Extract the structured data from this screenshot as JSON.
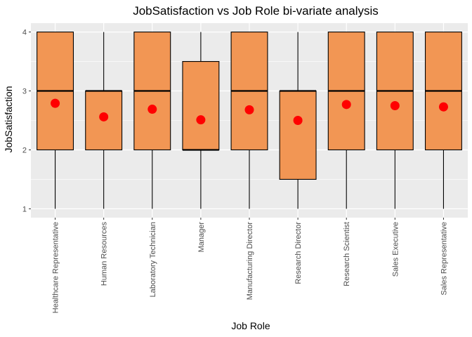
{
  "chart_data": {
    "type": "box",
    "title": "JobSatisfaction vs Job Role bi-variate analysis",
    "xlabel": "Job Role",
    "ylabel": "JobSatisfaction",
    "ylim": [
      0.85,
      4.15
    ],
    "yticks": [
      "1",
      "2",
      "3",
      "4"
    ],
    "grid": true,
    "categories": [
      "Healthcare Representative",
      "Human Resources",
      "Laboratory Technician",
      "Manager",
      "Manufacturing Director",
      "Research Director",
      "Research Scientist",
      "Sales Executive",
      "Sales Representative"
    ],
    "boxes": [
      {
        "min": 1,
        "q1": 2,
        "median": 3,
        "q3": 4,
        "max": 4,
        "mean": 2.79
      },
      {
        "min": 1,
        "q1": 2,
        "median": 3,
        "q3": 3,
        "max": 4,
        "mean": 2.56
      },
      {
        "min": 1,
        "q1": 2,
        "median": 3,
        "q3": 4,
        "max": 4,
        "mean": 2.69
      },
      {
        "min": 1,
        "q1": 2,
        "median": 2,
        "q3": 3.5,
        "max": 4,
        "mean": 2.51
      },
      {
        "min": 1,
        "q1": 2,
        "median": 3,
        "q3": 4,
        "max": 4,
        "mean": 2.68
      },
      {
        "min": 1,
        "q1": 1.5,
        "median": 3,
        "q3": 3,
        "max": 4,
        "mean": 2.5
      },
      {
        "min": 1,
        "q1": 2,
        "median": 3,
        "q3": 4,
        "max": 4,
        "mean": 2.77
      },
      {
        "min": 1,
        "q1": 2,
        "median": 3,
        "q3": 4,
        "max": 4,
        "mean": 2.75
      },
      {
        "min": 1,
        "q1": 2,
        "median": 3,
        "q3": 4,
        "max": 4,
        "mean": 2.73
      }
    ],
    "colors": {
      "panel": "#EBEBEB",
      "grid": "#FFFFFF",
      "box_fill": "#F29654",
      "outline": "#000000",
      "mean_point": "#FF0000"
    }
  }
}
